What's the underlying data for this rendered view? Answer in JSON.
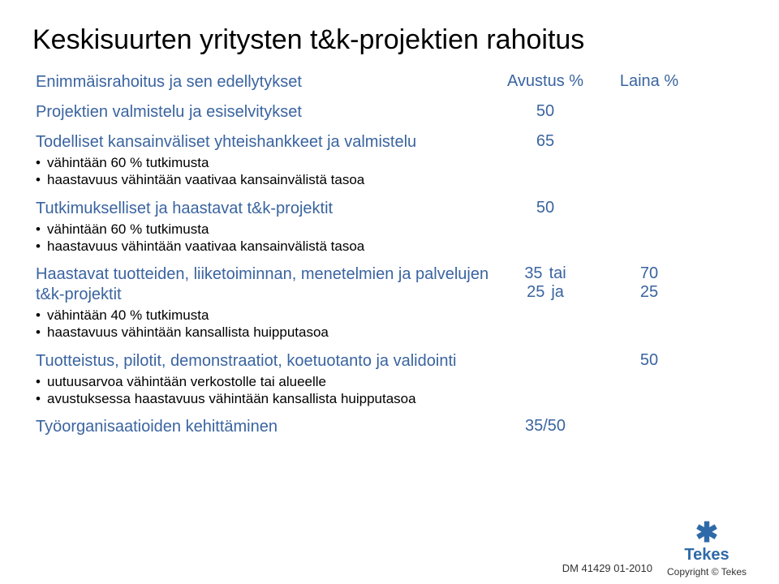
{
  "title": "Keskisuurten yritysten t&k-projektien rahoitus",
  "header": {
    "lead": "Enimmäisrahoitus ja sen edellytykset",
    "col2": "Avustus %",
    "col3": "Laina %"
  },
  "rows": [
    {
      "head": "Projektien valmistelu ja esiselvitykset",
      "bullets": [],
      "c2": "50",
      "c3": ""
    },
    {
      "head": "Todelliset kansainväliset yhteishankkeet ja valmistelu",
      "bullets": [
        "vähintään 60 % tutkimusta",
        "haastavuus vähintään vaativaa kansainvälistä tasoa"
      ],
      "c2": "65",
      "c3": ""
    },
    {
      "head": "Tutkimukselliset ja haastavat t&k-projektit",
      "bullets": [
        "vähintään 60 % tutkimusta",
        "haastavuus vähintään vaativaa kansainvälistä tasoa"
      ],
      "c2": "50",
      "c3": ""
    },
    {
      "head": "Haastavat tuotteiden, liiketoiminnan, menetelmien ja palvelujen t&k-projektit",
      "bullets": [
        "vähintään 40 % tutkimusta",
        "haastavuus vähintään kansallista huipputasoa"
      ],
      "c2_pair": [
        "35",
        "25"
      ],
      "mid_pair": [
        "tai",
        "ja"
      ],
      "c3_pair": [
        "70",
        "25"
      ]
    },
    {
      "head": "Tuotteistus, pilotit, demonstraatiot, koetuotanto ja validointi",
      "bullets": [
        "uutuusarvoa vähintään verkostolle tai alueelle",
        "avustuksessa haastavuus vähintään kansallista huipputasoa"
      ],
      "c2": "",
      "c3": "50"
    },
    {
      "head": "Työorganisaatioiden kehittäminen",
      "bullets": [],
      "c2": "35/50",
      "c3": ""
    }
  ],
  "footer": {
    "docid": "DM 41429  01-2010",
    "brand": "Tekes",
    "copy": "Copyright © Tekes"
  }
}
